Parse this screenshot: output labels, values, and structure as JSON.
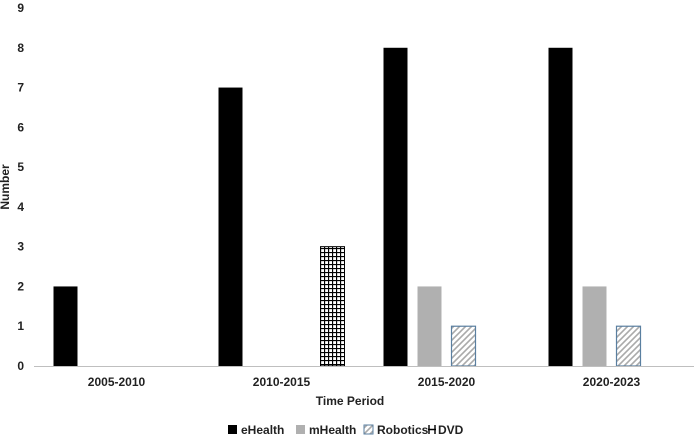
{
  "chart_data": {
    "type": "bar",
    "title": "",
    "xlabel": "Time Period",
    "ylabel": "Number",
    "ylim": [
      0,
      9
    ],
    "yticks": [
      0,
      1,
      2,
      3,
      4,
      5,
      6,
      7,
      8,
      9
    ],
    "grid": false,
    "legend_position": "bottom",
    "categories": [
      "2005-2010",
      "2010-2015",
      "2015-2020",
      "2020-2023"
    ],
    "series": [
      {
        "name": "eHealth",
        "values": [
          2,
          7,
          8,
          8
        ],
        "color": "#000000",
        "pattern": "solid"
      },
      {
        "name": "mHealth",
        "values": [
          0,
          0,
          2,
          2
        ],
        "color": "#b0b0b0",
        "pattern": "solid"
      },
      {
        "name": "Robotics",
        "values": [
          0,
          0,
          1,
          1
        ],
        "color": "#5a7fa0",
        "pattern": "diagonal-hatch"
      },
      {
        "name": "DVD",
        "values": [
          0,
          3,
          0,
          0
        ],
        "color": "#000000",
        "pattern": "grid"
      }
    ]
  }
}
